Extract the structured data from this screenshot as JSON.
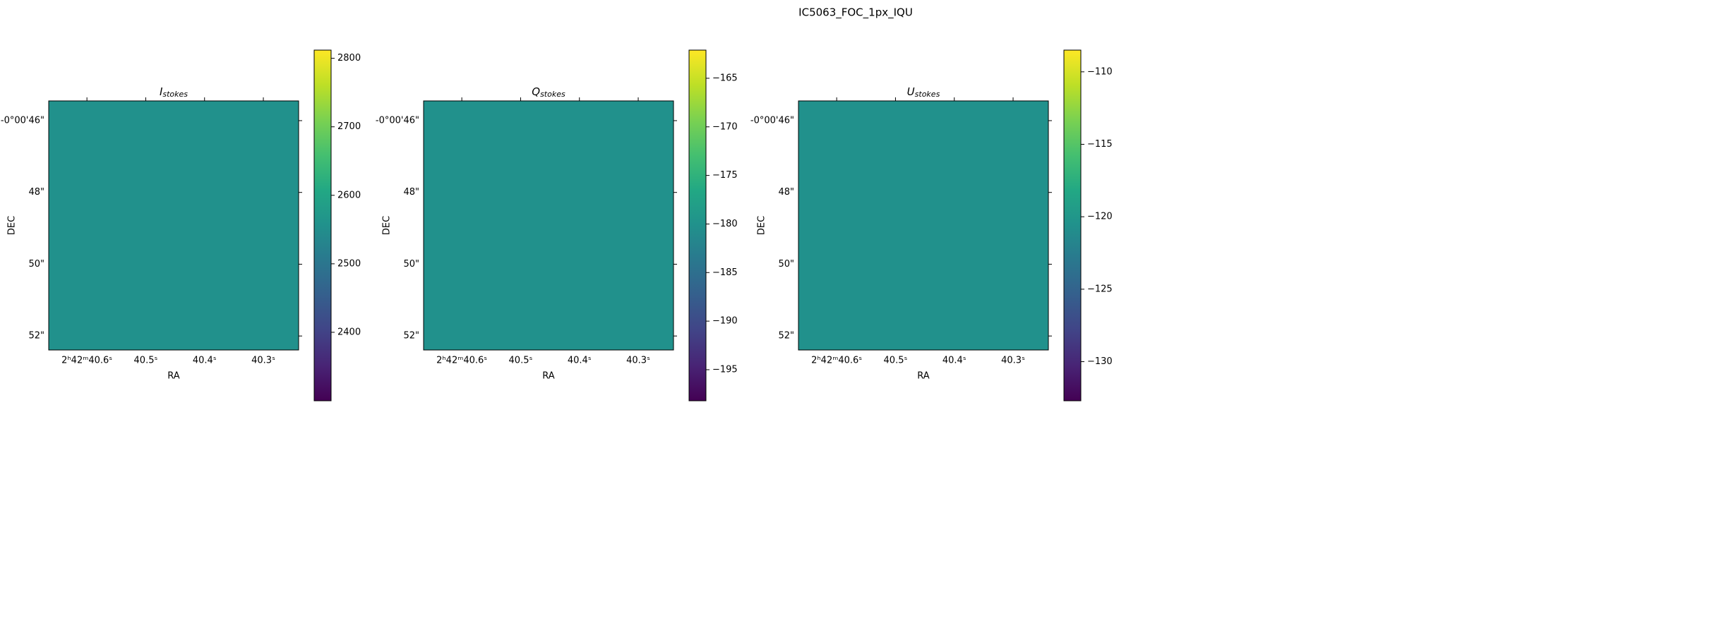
{
  "title": "IC5063_FOC_1px_IQU",
  "chart_data": [
    {
      "type": "image",
      "title": "I",
      "title_subscript": "stokes",
      "xlabel": "RA",
      "ylabel": "DEC",
      "xlim": [
        40.665,
        40.24
      ],
      "ylim": [
        52.39,
        45.45
      ],
      "xticks": [
        {
          "value": 40.6,
          "label": "2ʰ42ᵐ40.6ˢ"
        },
        {
          "value": 40.5,
          "label": "40.5ˢ"
        },
        {
          "value": 40.4,
          "label": "40.4ˢ"
        },
        {
          "value": 40.3,
          "label": "40.3ˢ"
        }
      ],
      "yticks": [
        {
          "value": 46,
          "label": "-0°00'46\""
        },
        {
          "value": 48,
          "label": "48\""
        },
        {
          "value": 50,
          "label": "50\""
        },
        {
          "value": 52,
          "label": "52\""
        }
      ],
      "value": 2556,
      "cmap": "viridis",
      "clim": [
        2300,
        2812
      ],
      "cticks": [
        2400,
        2500,
        2600,
        2700,
        2800
      ]
    },
    {
      "type": "image",
      "title": "Q",
      "title_subscript": "stokes",
      "xlabel": "RA",
      "ylabel": "DEC",
      "xlim": [
        40.665,
        40.24
      ],
      "ylim": [
        52.39,
        45.45
      ],
      "xticks": [
        {
          "value": 40.6,
          "label": "2ʰ42ᵐ40.6ˢ"
        },
        {
          "value": 40.5,
          "label": "40.5ˢ"
        },
        {
          "value": 40.4,
          "label": "40.4ˢ"
        },
        {
          "value": 40.3,
          "label": "40.3ˢ"
        }
      ],
      "yticks": [
        {
          "value": 46,
          "label": "-0°00'46\""
        },
        {
          "value": 48,
          "label": "48\""
        },
        {
          "value": 50,
          "label": "50\""
        },
        {
          "value": 52,
          "label": "52\""
        }
      ],
      "value": -180.2,
      "cmap": "viridis",
      "clim": [
        -198.2,
        -162.1
      ],
      "cticks": [
        {
          "value": -195,
          "label": "−195"
        },
        {
          "value": -190,
          "label": "−190"
        },
        {
          "value": -185,
          "label": "−185"
        },
        {
          "value": -180,
          "label": "−180"
        },
        {
          "value": -175,
          "label": "−175"
        },
        {
          "value": -170,
          "label": "−170"
        },
        {
          "value": -165,
          "label": "−165"
        }
      ]
    },
    {
      "type": "image",
      "title": "U",
      "title_subscript": "stokes",
      "xlabel": "RA",
      "ylabel": "DEC",
      "xlim": [
        40.665,
        40.24
      ],
      "ylim": [
        52.39,
        45.45
      ],
      "xticks": [
        {
          "value": 40.6,
          "label": "2ʰ42ᵐ40.6ˢ"
        },
        {
          "value": 40.5,
          "label": "40.5ˢ"
        },
        {
          "value": 40.4,
          "label": "40.4ˢ"
        },
        {
          "value": 40.3,
          "label": "40.3ˢ"
        }
      ],
      "yticks": [
        {
          "value": 46,
          "label": "-0°00'46\""
        },
        {
          "value": 48,
          "label": "48\""
        },
        {
          "value": 50,
          "label": "50\""
        },
        {
          "value": 52,
          "label": "52\""
        }
      ],
      "value": -120.6,
      "cmap": "viridis",
      "clim": [
        -132.7,
        -108.5
      ],
      "cticks": [
        {
          "value": -130,
          "label": "−130"
        },
        {
          "value": -125,
          "label": "−125"
        },
        {
          "value": -120,
          "label": "−120"
        },
        {
          "value": -115,
          "label": "−115"
        },
        {
          "value": -110,
          "label": "−110"
        }
      ]
    }
  ]
}
